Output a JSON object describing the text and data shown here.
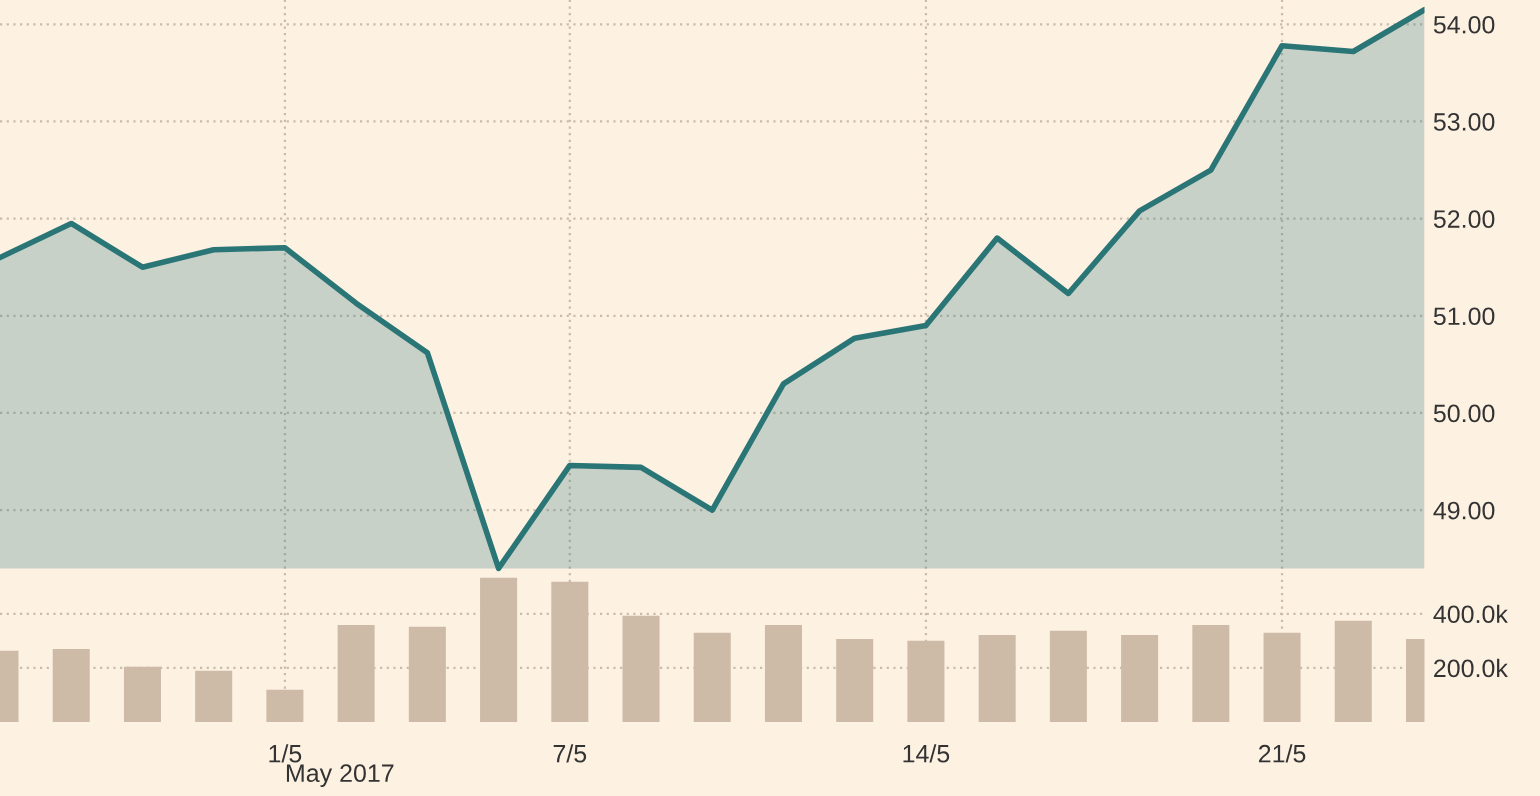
{
  "chart_data": {
    "type": "area",
    "categories": [
      null,
      null,
      null,
      null,
      "1/5",
      null,
      null,
      null,
      "7/5",
      null,
      null,
      null,
      null,
      "14/5",
      null,
      null,
      null,
      null,
      "21/5",
      null,
      null
    ],
    "series": [
      {
        "color": "#2a7576",
        "values": [
          51.6,
          51.95,
          51.5,
          51.68,
          51.7,
          51.13,
          50.62,
          48.4,
          49.46,
          49.44,
          49.0,
          50.3,
          50.77,
          50.9,
          51.8,
          51.23,
          52.08,
          52.5,
          53.78,
          53.72,
          54.15
        ]
      },
      {
        "type": "bar",
        "axis": "y2",
        "color": "#cdbba8",
        "values": [
          263000,
          270000,
          204000,
          189000,
          119000,
          359000,
          352000,
          533000,
          519000,
          393000,
          330000,
          359000,
          307000,
          300000,
          322000,
          337000,
          322000,
          359000,
          330000,
          374000,
          307000
        ]
      }
    ],
    "ylim": [
      46.82,
      54.25
    ],
    "yticks": [
      {
        "value": 49,
        "label": "49.00"
      },
      {
        "value": 50,
        "label": "50.00"
      },
      {
        "value": 51,
        "label": "51.00"
      },
      {
        "value": 52,
        "label": "52.00"
      },
      {
        "value": 53,
        "label": "53.00"
      },
      {
        "value": 54,
        "label": "54.00"
      }
    ],
    "y2lim": [
      0,
      2670000
    ],
    "y2ticks": [
      {
        "value": 200000,
        "label": "200.0k"
      },
      {
        "value": 400000,
        "label": "400.0k"
      }
    ],
    "grid": true,
    "annotations": [
      "May 2017"
    ]
  }
}
